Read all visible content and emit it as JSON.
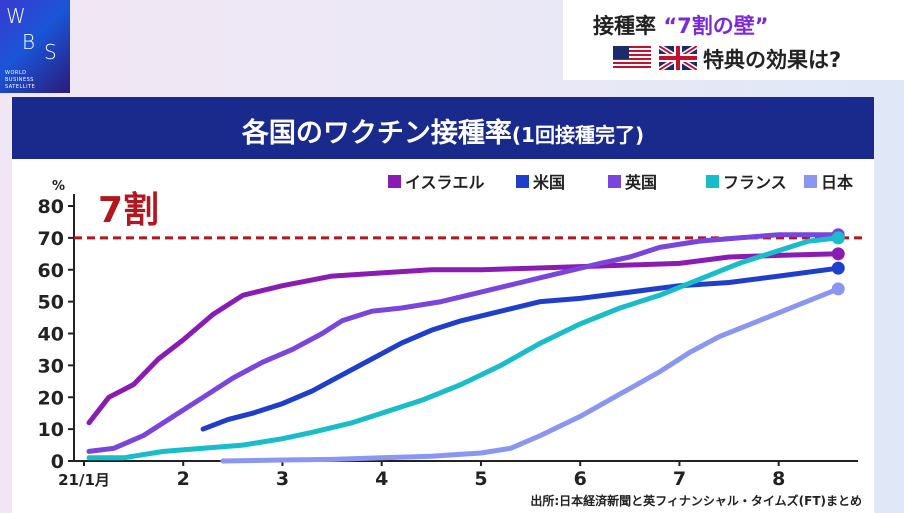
{
  "logo": {
    "mark": "WBS",
    "line1": "WORLD",
    "line2": "BUSINESS",
    "line3": "SATELLITE"
  },
  "topic": {
    "line1_prefix": "接種率 ",
    "line1_quote": "“7割の壁”",
    "line2": "特典の効果は?",
    "flags": [
      "us-flag",
      "uk-flag"
    ]
  },
  "banner": {
    "title": "各国のワクチン接種率",
    "subtitle": "(1回接種完了)"
  },
  "source": "出所:日本経済新聞と英フィナンシャル・タイムズ(FT)まとめ",
  "chart_data": {
    "type": "line",
    "ylabel": "%",
    "ylim": [
      0,
      80
    ],
    "yticks": [
      0,
      10,
      20,
      30,
      40,
      50,
      60,
      70,
      80
    ],
    "xlim": [
      1,
      8.9
    ],
    "xticks": [
      {
        "v": 1,
        "label": "21/1月"
      },
      {
        "v": 2,
        "label": "2"
      },
      {
        "v": 3,
        "label": "3"
      },
      {
        "v": 4,
        "label": "4"
      },
      {
        "v": 5,
        "label": "5"
      },
      {
        "v": 6,
        "label": "6"
      },
      {
        "v": 7,
        "label": "7"
      },
      {
        "v": 8,
        "label": "8"
      }
    ],
    "threshold": {
      "value": 70,
      "label": "7割",
      "color": "#b0171f"
    },
    "legend_position": "top-right",
    "series": [
      {
        "name": "イスラエル",
        "color": "#8a1cb4",
        "points": [
          [
            1.05,
            12
          ],
          [
            1.25,
            20
          ],
          [
            1.5,
            24
          ],
          [
            1.75,
            32
          ],
          [
            2.0,
            38
          ],
          [
            2.3,
            46
          ],
          [
            2.6,
            52
          ],
          [
            3.0,
            55
          ],
          [
            3.5,
            58
          ],
          [
            4.0,
            59
          ],
          [
            4.5,
            60
          ],
          [
            5.0,
            60
          ],
          [
            5.5,
            60.5
          ],
          [
            6.0,
            61
          ],
          [
            6.5,
            61.5
          ],
          [
            7.0,
            62
          ],
          [
            7.5,
            64
          ],
          [
            8.0,
            64.5
          ],
          [
            8.6,
            65
          ]
        ]
      },
      {
        "name": "米国",
        "color": "#1f3ec9",
        "points": [
          [
            2.2,
            10
          ],
          [
            2.45,
            13
          ],
          [
            2.7,
            15
          ],
          [
            3.0,
            18
          ],
          [
            3.3,
            22
          ],
          [
            3.6,
            27
          ],
          [
            3.9,
            32
          ],
          [
            4.2,
            37
          ],
          [
            4.5,
            41
          ],
          [
            4.8,
            44
          ],
          [
            5.2,
            47
          ],
          [
            5.6,
            50
          ],
          [
            6.0,
            51
          ],
          [
            6.5,
            53
          ],
          [
            7.0,
            55
          ],
          [
            7.5,
            56
          ],
          [
            8.0,
            58
          ],
          [
            8.6,
            60.5
          ]
        ]
      },
      {
        "name": "英国",
        "color": "#7a45db",
        "points": [
          [
            1.05,
            3
          ],
          [
            1.3,
            4
          ],
          [
            1.6,
            8
          ],
          [
            1.9,
            14
          ],
          [
            2.2,
            20
          ],
          [
            2.5,
            26
          ],
          [
            2.8,
            31
          ],
          [
            3.1,
            35
          ],
          [
            3.4,
            40
          ],
          [
            3.6,
            44
          ],
          [
            3.9,
            47
          ],
          [
            4.2,
            48
          ],
          [
            4.6,
            50
          ],
          [
            5.0,
            53
          ],
          [
            5.4,
            56
          ],
          [
            5.8,
            59
          ],
          [
            6.2,
            62
          ],
          [
            6.5,
            64
          ],
          [
            6.8,
            67
          ],
          [
            7.2,
            69
          ],
          [
            7.6,
            70
          ],
          [
            8.0,
            71
          ],
          [
            8.6,
            71
          ]
        ]
      },
      {
        "name": "フランス",
        "color": "#19bdc9",
        "points": [
          [
            1.05,
            1
          ],
          [
            1.4,
            1
          ],
          [
            1.8,
            3
          ],
          [
            2.2,
            4
          ],
          [
            2.6,
            5
          ],
          [
            3.0,
            7
          ],
          [
            3.3,
            9
          ],
          [
            3.7,
            12
          ],
          [
            4.0,
            15
          ],
          [
            4.4,
            19
          ],
          [
            4.8,
            24
          ],
          [
            5.2,
            30
          ],
          [
            5.6,
            37
          ],
          [
            6.0,
            43
          ],
          [
            6.4,
            48
          ],
          [
            6.8,
            52
          ],
          [
            7.2,
            57
          ],
          [
            7.6,
            62
          ],
          [
            8.0,
            66
          ],
          [
            8.3,
            69
          ],
          [
            8.6,
            70
          ]
        ]
      },
      {
        "name": "日本",
        "color": "#8a96f0",
        "points": [
          [
            2.4,
            0
          ],
          [
            3.0,
            0.3
          ],
          [
            3.5,
            0.5
          ],
          [
            4.0,
            1
          ],
          [
            4.5,
            1.5
          ],
          [
            5.0,
            2.5
          ],
          [
            5.3,
            4
          ],
          [
            5.6,
            8
          ],
          [
            6.0,
            14
          ],
          [
            6.4,
            21
          ],
          [
            6.8,
            28
          ],
          [
            7.1,
            34
          ],
          [
            7.4,
            39
          ],
          [
            7.8,
            44
          ],
          [
            8.2,
            49
          ],
          [
            8.6,
            54
          ]
        ]
      }
    ]
  }
}
